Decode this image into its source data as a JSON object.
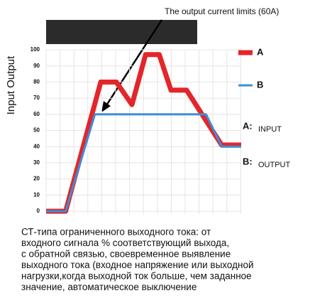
{
  "chart_data": {
    "type": "line",
    "annotation": "The output current limits (60A)",
    "ylabel": "Input Output",
    "xlim": [
      0,
      100
    ],
    "ylim": [
      0,
      100
    ],
    "yticks": [
      0,
      10,
      20,
      30,
      40,
      50,
      60,
      70,
      80,
      90,
      100
    ],
    "grid": true,
    "series": [
      {
        "name": "A",
        "color": "#e3262a",
        "x": [
          0,
          10,
          28,
          36,
          44,
          51,
          58,
          64,
          72,
          90,
          100
        ],
        "values": [
          0,
          0,
          80,
          80,
          66,
          97,
          97,
          75,
          75,
          41,
          41
        ]
      },
      {
        "name": "B",
        "color": "#3b8fd6",
        "x": [
          0,
          10,
          25,
          82,
          90,
          100
        ],
        "values": [
          0,
          0,
          60,
          60,
          40,
          40
        ]
      }
    ],
    "side_labels": [
      {
        "key": "A:",
        "text": "INPUT"
      },
      {
        "key": "B:",
        "text": "OUTPUT"
      }
    ],
    "notes": [
      "СТ-типа ограниченного выходного тока: от",
      "входного сигнала % соответствующий выхода,",
      "с обратной связью, своевременное выявление",
      "выходного тока (входное напряжение или выходной",
      "нагрузки,когда выходной ток больше, чем заданное",
      "значение, автоматическое выключение"
    ]
  }
}
